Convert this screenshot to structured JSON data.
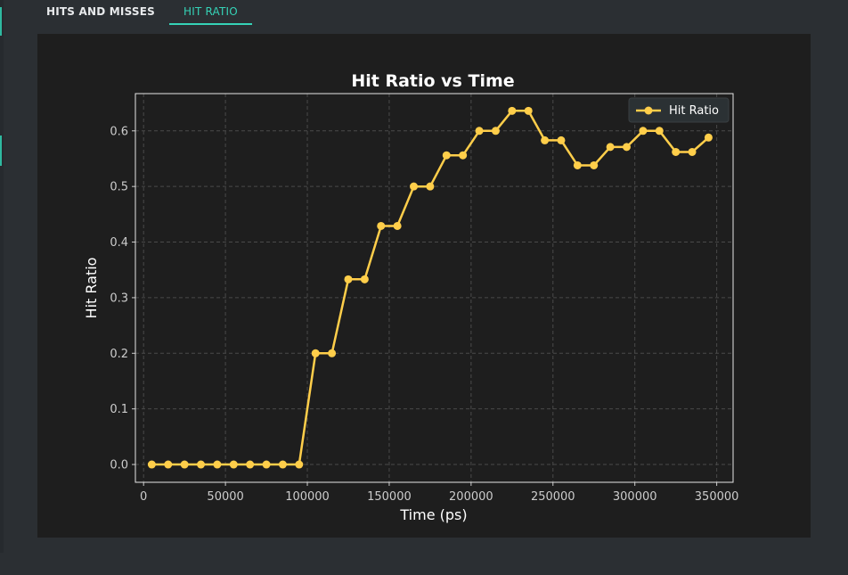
{
  "tabs": [
    {
      "label": "HITS AND MISSES",
      "active": false
    },
    {
      "label": "HIT RATIO",
      "active": true
    }
  ],
  "colors": {
    "accent": "#35d3b7",
    "series": "#ffce4a",
    "panel_bg": "#1e1e1e",
    "app_bg": "#2b2f33"
  },
  "chart_data": {
    "type": "line",
    "title": "Hit Ratio vs Time",
    "xlabel": "Time (ps)",
    "ylabel": "Hit Ratio",
    "xlim": [
      -5000,
      360000
    ],
    "ylim": [
      -0.032,
      0.667
    ],
    "xticks": [
      0,
      50000,
      100000,
      150000,
      200000,
      250000,
      300000,
      350000
    ],
    "yticks": [
      0.0,
      0.1,
      0.2,
      0.3,
      0.4,
      0.5,
      0.6
    ],
    "xtick_labels": [
      "0",
      "50000",
      "100000",
      "150000",
      "200000",
      "250000",
      "300000",
      "350000"
    ],
    "ytick_labels": [
      "0.0",
      "0.1",
      "0.2",
      "0.3",
      "0.4",
      "0.5",
      "0.6"
    ],
    "grid": true,
    "legend_position": "top-right",
    "series": [
      {
        "name": "Hit Ratio",
        "x": [
          5000,
          15000,
          25000,
          35000,
          45000,
          55000,
          65000,
          75000,
          85000,
          95000,
          105000,
          115000,
          125000,
          135000,
          145000,
          155000,
          165000,
          175000,
          185000,
          195000,
          205000,
          215000,
          225000,
          235000,
          245000,
          255000,
          265000,
          275000,
          285000,
          295000,
          305000,
          315000,
          325000,
          335000,
          345000
        ],
        "y": [
          0.0,
          0.0,
          0.0,
          0.0,
          0.0,
          0.0,
          0.0,
          0.0,
          0.0,
          0.0,
          0.2,
          0.2,
          0.333,
          0.333,
          0.429,
          0.429,
          0.5,
          0.5,
          0.556,
          0.556,
          0.6,
          0.6,
          0.636,
          0.636,
          0.583,
          0.583,
          0.538,
          0.538,
          0.571,
          0.571,
          0.6,
          0.6,
          0.562,
          0.562,
          0.588
        ]
      }
    ]
  }
}
